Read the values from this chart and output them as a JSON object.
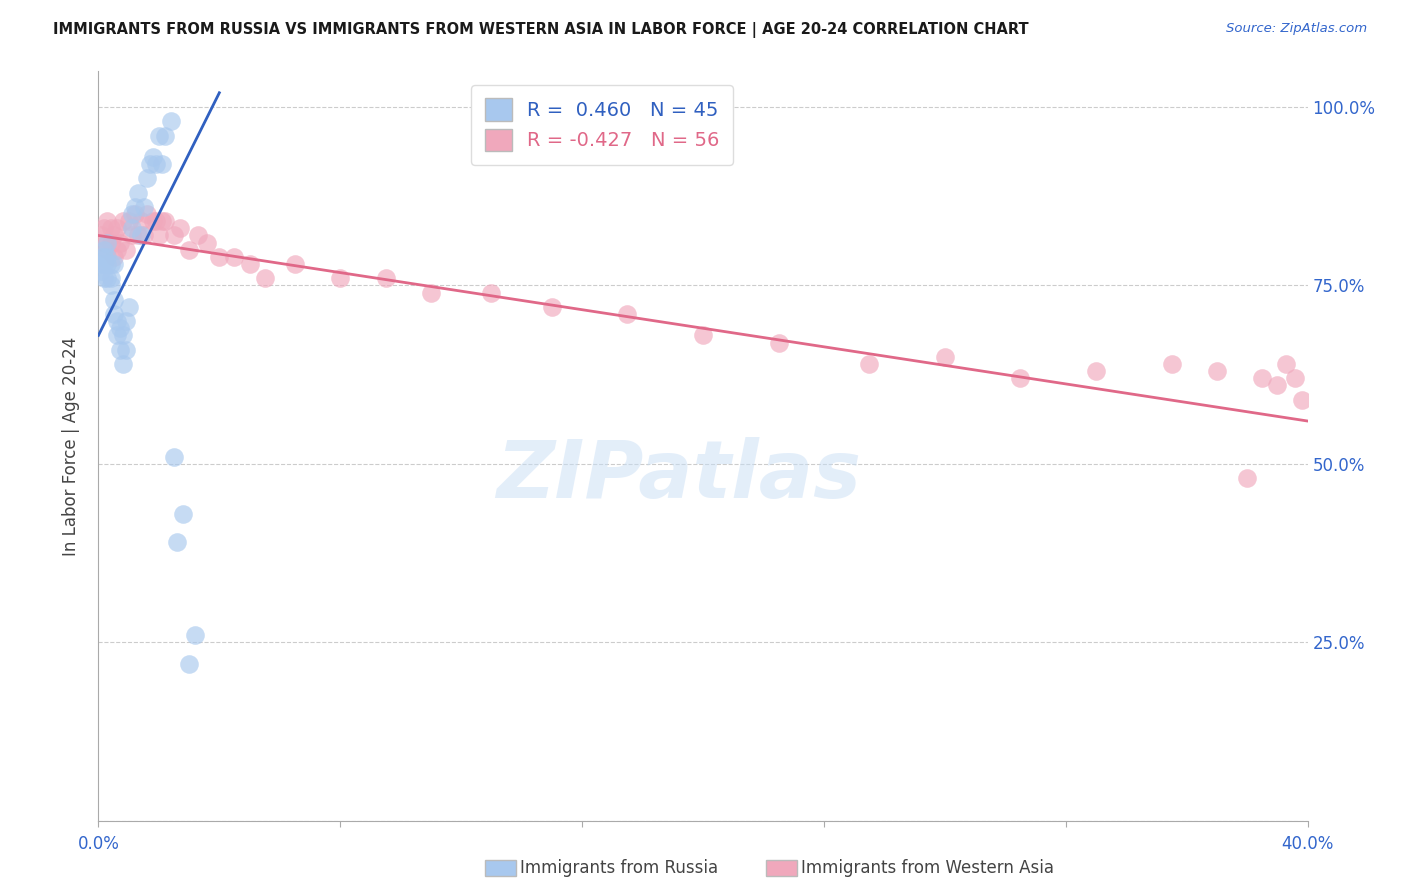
{
  "title": "IMMIGRANTS FROM RUSSIA VS IMMIGRANTS FROM WESTERN ASIA IN LABOR FORCE | AGE 20-24 CORRELATION CHART",
  "source": "Source: ZipAtlas.com",
  "ylabel": "In Labor Force | Age 20-24",
  "y_ticks": [
    0.0,
    0.25,
    0.5,
    0.75,
    1.0
  ],
  "y_tick_labels": [
    "",
    "25.0%",
    "50.0%",
    "75.0%",
    "100.0%"
  ],
  "x_ticks": [
    0.0,
    0.08,
    0.16,
    0.24,
    0.32,
    0.4
  ],
  "x_tick_labels": [
    "0.0%",
    "",
    "",
    "",
    "",
    "40.0%"
  ],
  "watermark_line1": "ZIP",
  "watermark_line2": "atlas",
  "r_blue": 0.46,
  "n_blue": 45,
  "r_pink": -0.427,
  "n_pink": 56,
  "blue_scatter_color": "#A8C8EE",
  "pink_scatter_color": "#F0A8BC",
  "blue_line_color": "#3060C0",
  "pink_line_color": "#E06888",
  "title_color": "#1a1a1a",
  "axis_color": "#3366CC",
  "russia_x": [
    0.001,
    0.001,
    0.001,
    0.002,
    0.002,
    0.002,
    0.002,
    0.003,
    0.003,
    0.003,
    0.003,
    0.004,
    0.004,
    0.004,
    0.005,
    0.005,
    0.005,
    0.006,
    0.006,
    0.007,
    0.007,
    0.008,
    0.008,
    0.009,
    0.009,
    0.01,
    0.011,
    0.011,
    0.012,
    0.013,
    0.014,
    0.015,
    0.016,
    0.017,
    0.018,
    0.019,
    0.02,
    0.021,
    0.022,
    0.024,
    0.025,
    0.026,
    0.028,
    0.03,
    0.032
  ],
  "russia_y": [
    0.78,
    0.79,
    0.77,
    0.79,
    0.78,
    0.76,
    0.8,
    0.78,
    0.76,
    0.79,
    0.81,
    0.78,
    0.76,
    0.75,
    0.73,
    0.71,
    0.78,
    0.7,
    0.68,
    0.69,
    0.66,
    0.68,
    0.64,
    0.7,
    0.66,
    0.72,
    0.85,
    0.83,
    0.86,
    0.88,
    0.82,
    0.86,
    0.9,
    0.92,
    0.93,
    0.92,
    0.96,
    0.92,
    0.96,
    0.98,
    0.51,
    0.39,
    0.43,
    0.22,
    0.26
  ],
  "western_x": [
    0.001,
    0.002,
    0.002,
    0.003,
    0.003,
    0.004,
    0.004,
    0.005,
    0.005,
    0.006,
    0.006,
    0.007,
    0.008,
    0.009,
    0.01,
    0.011,
    0.012,
    0.013,
    0.014,
    0.015,
    0.016,
    0.018,
    0.019,
    0.02,
    0.021,
    0.022,
    0.025,
    0.027,
    0.03,
    0.033,
    0.036,
    0.04,
    0.045,
    0.05,
    0.055,
    0.065,
    0.08,
    0.095,
    0.11,
    0.13,
    0.15,
    0.175,
    0.2,
    0.225,
    0.255,
    0.28,
    0.305,
    0.33,
    0.355,
    0.37,
    0.38,
    0.385,
    0.39,
    0.393,
    0.396,
    0.398
  ],
  "western_y": [
    0.82,
    0.83,
    0.81,
    0.84,
    0.8,
    0.83,
    0.81,
    0.82,
    0.79,
    0.83,
    0.8,
    0.81,
    0.84,
    0.8,
    0.84,
    0.82,
    0.85,
    0.82,
    0.84,
    0.82,
    0.85,
    0.84,
    0.84,
    0.82,
    0.84,
    0.84,
    0.82,
    0.83,
    0.8,
    0.82,
    0.81,
    0.79,
    0.79,
    0.78,
    0.76,
    0.78,
    0.76,
    0.76,
    0.74,
    0.74,
    0.72,
    0.71,
    0.68,
    0.67,
    0.64,
    0.65,
    0.62,
    0.63,
    0.64,
    0.63,
    0.48,
    0.62,
    0.61,
    0.64,
    0.62,
    0.59
  ]
}
